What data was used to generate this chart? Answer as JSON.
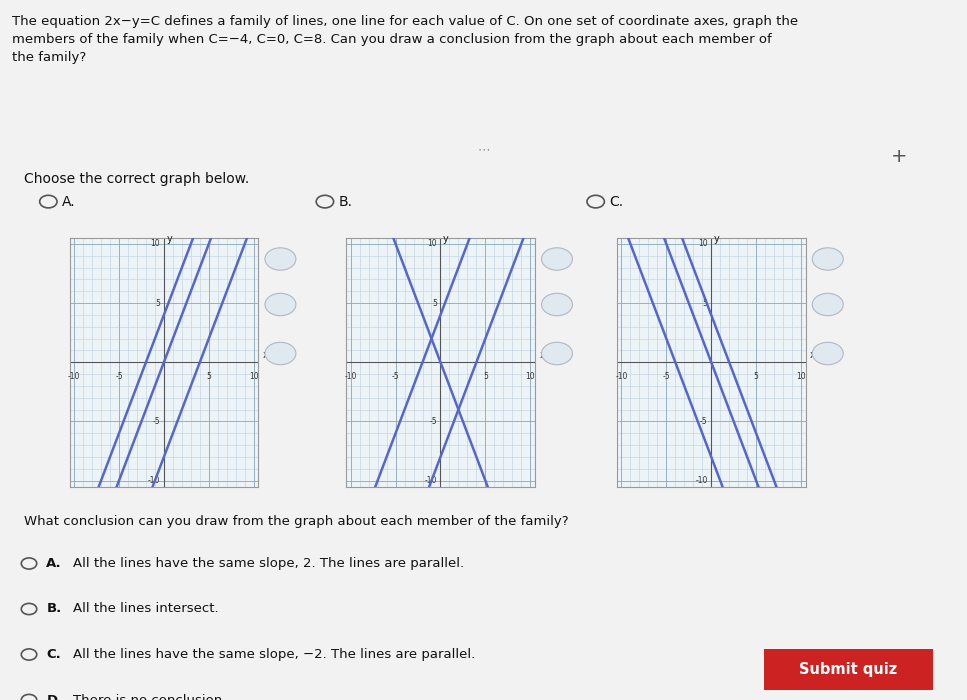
{
  "line_color": "#5566cc",
  "grid_minor_color": "#c8d8e8",
  "grid_major_color": "#a0b8cc",
  "axis_color": "#222222",
  "graph_bg": "#eef4f8",
  "page_bg_top": "#f0f0f0",
  "page_bg_bottom": "#e8eef4",
  "graph_border": "#aaaaaa",
  "question_text": "What conclusion can you draw from the graph about each member of the family?",
  "answers": [
    "All the lines have the same slope, 2. The lines are parallel.",
    "All the lines intersect.",
    "All the lines have the same slope, −2. The lines are parallel.",
    "There is no conclusion."
  ],
  "answer_labels": [
    "A.",
    "B.",
    "C.",
    "D."
  ],
  "submit_text": "Submit quiz",
  "submit_bg": "#cc2222",
  "submit_fg": "#ffffff",
  "graph_A_lines": [
    [
      2,
      4
    ],
    [
      2,
      0
    ],
    [
      2,
      -8
    ]
  ],
  "graph_B_lines": [
    [
      2,
      -8
    ],
    [
      -2,
      0
    ],
    [
      2,
      4
    ]
  ],
  "graph_C_lines": [
    [
      -2,
      4
    ],
    [
      -2,
      0
    ],
    [
      -2,
      -8
    ]
  ]
}
